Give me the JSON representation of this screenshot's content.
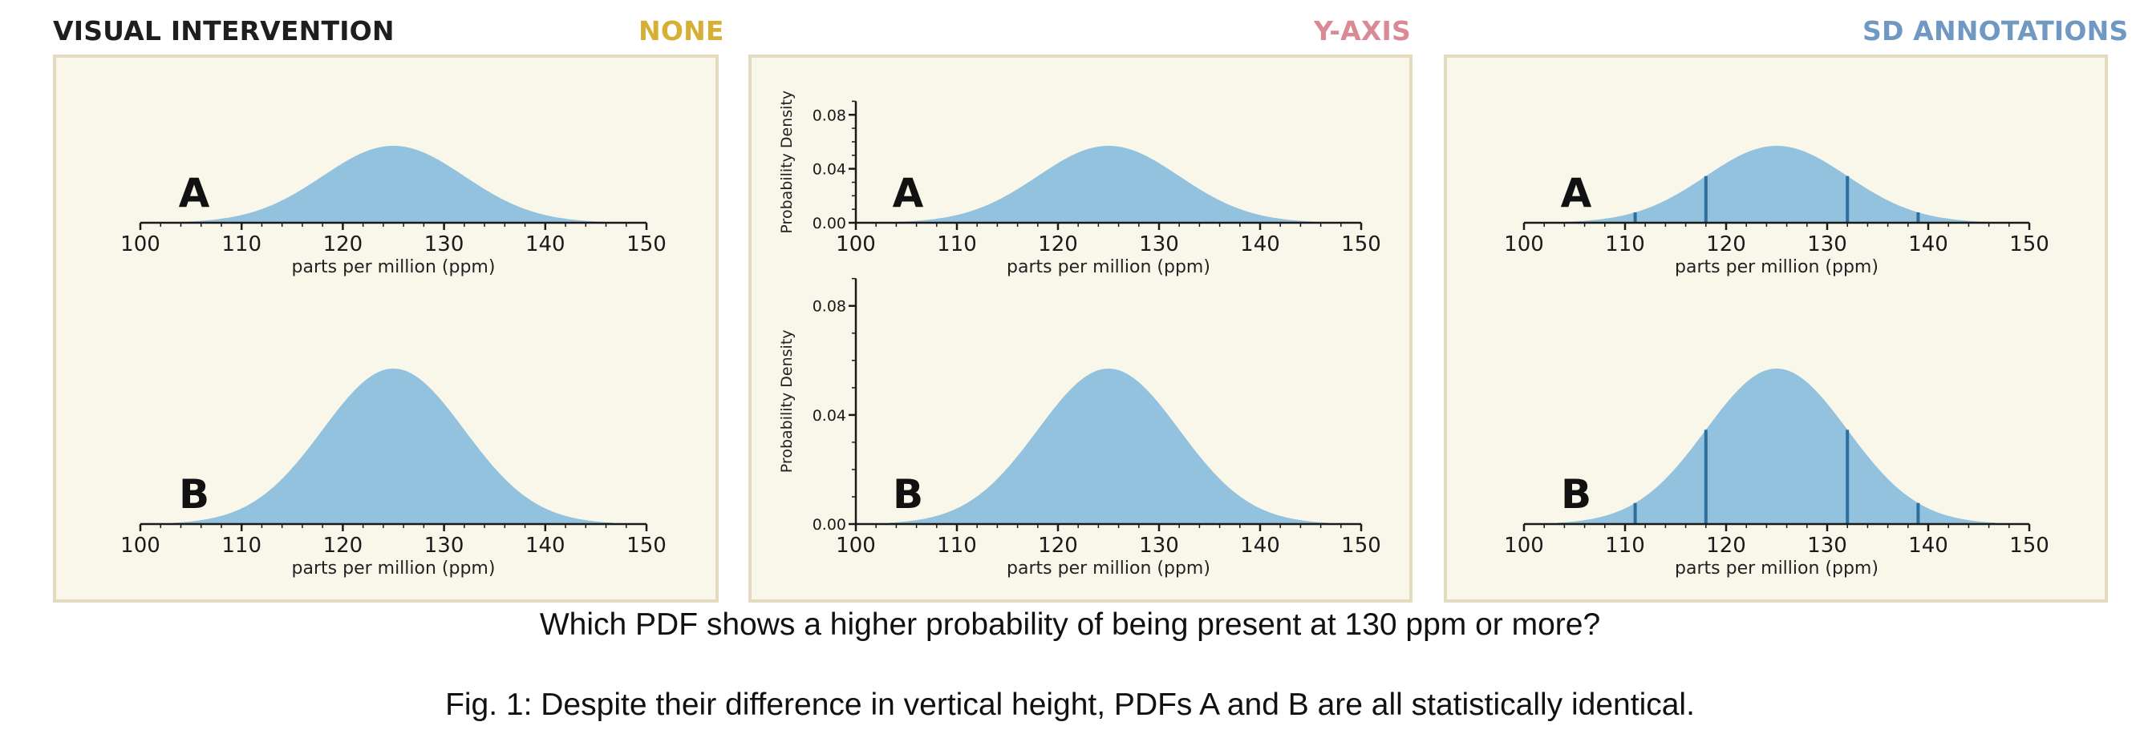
{
  "headers": {
    "left": "VISUAL INTERVENTION",
    "none": "NONE",
    "yaxis": "Y-AXIS",
    "sd": "SD ANNOTATIONS"
  },
  "question": "Which PDF shows a higher probability of being present at 130 ppm or more?",
  "caption": "Fig. 1: Despite their difference in vertical height, PDFs A and B are all statistically identical.",
  "colors": {
    "panel_fill": "#f9f6ea",
    "panel_border": "#e3dbbf",
    "curve_fill": "#92c2dd",
    "sd_line": "#2b6e9f",
    "axis": "#1a1a1a"
  },
  "chart_data": [
    {
      "type": "area",
      "panel": "NONE",
      "label": "A",
      "distribution": "normal",
      "mean": 125,
      "sd": 7,
      "peak_density": 0.057,
      "xlim": [
        100,
        150
      ],
      "xticks": [
        100,
        110,
        120,
        130,
        140,
        150
      ],
      "xlabel": "parts per million (ppm)",
      "y_axis_shown": false,
      "sd_annotations": false
    },
    {
      "type": "area",
      "panel": "NONE",
      "label": "B",
      "distribution": "normal",
      "mean": 125,
      "sd": 7,
      "peak_density": 0.057,
      "xlim": [
        100,
        150
      ],
      "xticks": [
        100,
        110,
        120,
        130,
        140,
        150
      ],
      "xlabel": "parts per million (ppm)",
      "y_axis_shown": false,
      "sd_annotations": false
    },
    {
      "type": "area",
      "panel": "Y-AXIS",
      "label": "A",
      "distribution": "normal",
      "mean": 125,
      "sd": 7,
      "peak_density": 0.057,
      "xlim": [
        100,
        150
      ],
      "xticks": [
        100,
        110,
        120,
        130,
        140,
        150
      ],
      "xlabel": "parts per million (ppm)",
      "y_axis_shown": true,
      "ylabel": "Probability Density",
      "ylim": [
        0,
        0.09
      ],
      "yticks": [
        "0.00",
        "0.04",
        "0.08"
      ],
      "sd_annotations": false
    },
    {
      "type": "area",
      "panel": "Y-AXIS",
      "label": "B",
      "distribution": "normal",
      "mean": 125,
      "sd": 7,
      "peak_density": 0.057,
      "xlim": [
        100,
        150
      ],
      "xticks": [
        100,
        110,
        120,
        130,
        140,
        150
      ],
      "xlabel": "parts per million (ppm)",
      "y_axis_shown": true,
      "ylabel": "Probability Density",
      "ylim": [
        0,
        0.09
      ],
      "yticks": [
        "0.00",
        "0.04",
        "0.08"
      ],
      "sd_annotations": false
    },
    {
      "type": "area",
      "panel": "SD ANNOTATIONS",
      "label": "A",
      "distribution": "normal",
      "mean": 125,
      "sd": 7,
      "peak_density": 0.057,
      "xlim": [
        100,
        150
      ],
      "xticks": [
        100,
        110,
        120,
        130,
        140,
        150
      ],
      "xlabel": "parts per million (ppm)",
      "y_axis_shown": false,
      "sd_annotations": true,
      "sd_lines": [
        111,
        118,
        132,
        139
      ]
    },
    {
      "type": "area",
      "panel": "SD ANNOTATIONS",
      "label": "B",
      "distribution": "normal",
      "mean": 125,
      "sd": 7,
      "peak_density": 0.057,
      "xlim": [
        100,
        150
      ],
      "xticks": [
        100,
        110,
        120,
        130,
        140,
        150
      ],
      "xlabel": "parts per million (ppm)",
      "y_axis_shown": false,
      "sd_annotations": true,
      "sd_lines": [
        111,
        118,
        132,
        139
      ]
    }
  ]
}
